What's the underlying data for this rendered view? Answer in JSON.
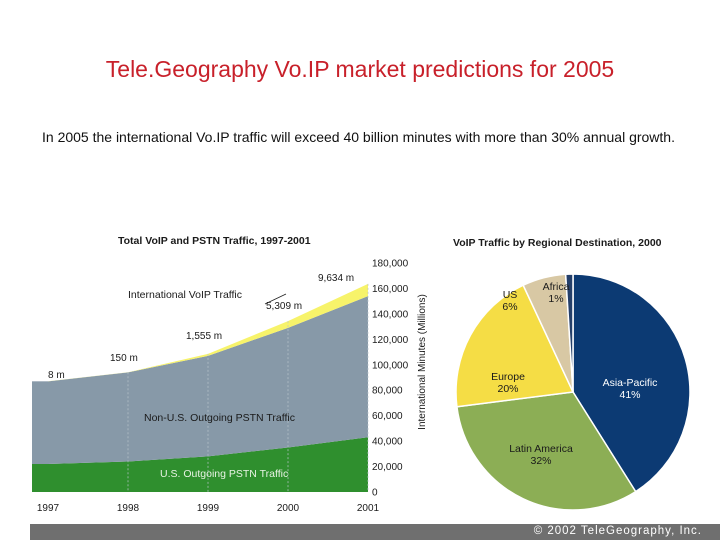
{
  "title": "Tele.Geography Vo.IP market predictions for 2005",
  "subtitle": "In 2005 the international Vo.IP traffic will exceed 40 billion minutes with more than 30% annual growth.",
  "footer": "© 2002 TeleGeography, Inc.",
  "colors": {
    "title": "#c8202a",
    "voip": "#f7f36a",
    "non_us_pstn": "#8799a8",
    "us_pstn": "#2f8f2e",
    "asia_pacific": "#0c3a73",
    "latin_america": "#8cae55",
    "europe": "#f5dd45",
    "us": "#d8c8a4",
    "africa": "#243f6a"
  },
  "chart_data": [
    {
      "type": "area",
      "title": "Total VoIP and PSTN Traffic, 1997-2001",
      "ylabel": "International Minutes (Millions)",
      "x": [
        "1997",
        "1998",
        "1999",
        "2000",
        "2001"
      ],
      "ylim": [
        0,
        180000
      ],
      "yticks": [
        0,
        20000,
        40000,
        60000,
        80000,
        100000,
        120000,
        140000,
        160000,
        180000
      ],
      "ytick_labels": [
        "0",
        "20,000",
        "40,000",
        "60,000",
        "80,000",
        "100,000",
        "120,000",
        "140,000",
        "160,000",
        "180,000"
      ],
      "series": [
        {
          "name": "U.S. Outgoing PSTN Traffic",
          "label": "U.S. Outgoing PSTN Traffic",
          "values": [
            22000,
            24000,
            28000,
            35000,
            43000
          ]
        },
        {
          "name": "Non-U.S. Outgoing PSTN Traffic",
          "label": "Non-U.S. Outgoing PSTN Traffic",
          "values": [
            65000,
            70000,
            79000,
            94000,
            111000
          ]
        },
        {
          "name": "International VoIP Traffic",
          "label": "International VoIP Traffic",
          "values": [
            8,
            150,
            1555,
            5309,
            9634
          ]
        }
      ],
      "annotations": [
        "8 m",
        "150 m",
        "1,555 m",
        "5,309 m",
        "9,634 m"
      ]
    },
    {
      "type": "pie",
      "title": "VoIP Traffic by Regional Destination, 2000",
      "slices": [
        {
          "name": "Asia-Pacific",
          "value": 41,
          "label": "41%"
        },
        {
          "name": "Latin America",
          "value": 32,
          "label": "32%"
        },
        {
          "name": "Europe",
          "value": 20,
          "label": "20%"
        },
        {
          "name": "US",
          "value": 6,
          "label": "6%"
        },
        {
          "name": "Africa",
          "value": 1,
          "label": "1%"
        }
      ]
    }
  ]
}
